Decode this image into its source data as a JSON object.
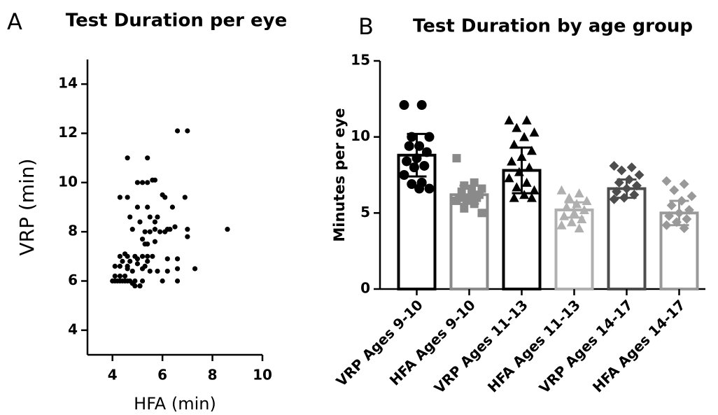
{
  "chart_data": [
    {
      "type": "scatter",
      "panel_label": "A",
      "title": "Test Duration per eye",
      "x_label": "HFA (min)",
      "y_label": "VRP (min)",
      "color": "#000000",
      "xlim": [
        3,
        10
      ],
      "xticks": [
        4,
        6,
        8,
        10
      ],
      "ylim": [
        3,
        15
      ],
      "yticks": [
        4,
        6,
        8,
        10,
        12,
        14
      ],
      "x": [
        4.0,
        4.1,
        4.2,
        4.3,
        4.4,
        4.5,
        4.6,
        4.7,
        4.8,
        4.9,
        5.1,
        5.2,
        4.9,
        5.1,
        4.1,
        4.3,
        4.1,
        4.3,
        4.6,
        4.8,
        4.3,
        4.6,
        4.9,
        5.2,
        5.4,
        5.6,
        4.4,
        4.7,
        5.0,
        5.3,
        5.5,
        4.6,
        4.5,
        5.2,
        5.4,
        5.8,
        6.0,
        6.2,
        6.6,
        6.2,
        6.6,
        7.3,
        6.6,
        4.6,
        5.4,
        6.6,
        7.0,
        5.0,
        5.2,
        5.4,
        5.6,
        5.7,
        4.3,
        4.6,
        6.0,
        6.1,
        6.9,
        6.4,
        5.0,
        5.4,
        4.7,
        5.5,
        5.8,
        5.1,
        5.7,
        4.8,
        6.2,
        7.0,
        8.6,
        5.3,
        5.5,
        5.7,
        5.9,
        6.1,
        6.3,
        6.5,
        7.0,
        5.3,
        5.4,
        5.2,
        5.7,
        5.0,
        4.5
      ],
      "y": [
        6.0,
        6.0,
        6.0,
        6.0,
        6.0,
        6.0,
        6.0,
        6.0,
        5.9,
        6.0,
        5.8,
        6.0,
        5.8,
        5.8,
        6.2,
        6.2,
        6.6,
        6.6,
        6.6,
        6.4,
        7.0,
        7.0,
        7.0,
        7.0,
        7.0,
        7.0,
        6.8,
        6.8,
        6.7,
        6.6,
        6.4,
        6.5,
        6.2,
        6.5,
        6.8,
        6.4,
        6.0,
        6.4,
        6.0,
        6.9,
        6.5,
        6.5,
        6.9,
        11.0,
        11.0,
        12.1,
        12.1,
        10.0,
        10.0,
        10.0,
        10.1,
        10.1,
        9.4,
        9.4,
        9.5,
        9.4,
        9.4,
        9.0,
        9.0,
        9.0,
        8.6,
        8.6,
        8.6,
        8.4,
        8.4,
        8.1,
        8.1,
        8.1,
        8.1,
        8.0,
        8.0,
        8.1,
        8.0,
        8.0,
        8.1,
        8.2,
        7.8,
        7.5,
        7.5,
        7.7,
        7.6,
        6.9,
        7.1
      ]
    },
    {
      "type": "bar",
      "panel_label": "B",
      "title": "Test Duration by age group",
      "y_label": "Minutes per eye",
      "ylim": [
        0,
        15
      ],
      "yticks": [
        0,
        5,
        10,
        15
      ],
      "categories": [
        "VRP Ages 9-10",
        "HFA Ages 9-10",
        "VRP Ages 11-13",
        "HFA Ages 11-13",
        "VRP Ages 14-17",
        "HFA Ages 14-17"
      ],
      "values": [
        8.8,
        6.2,
        7.8,
        5.2,
        6.6,
        5.0
      ],
      "errors": [
        1.4,
        0.6,
        1.5,
        0.5,
        0.6,
        0.8
      ],
      "colors": [
        "#000000",
        "#8a8a8a",
        "#000000",
        "#b0b0b0",
        "#4d4d4d",
        "#999999"
      ],
      "markers": [
        "circle",
        "square",
        "triangle",
        "triangle",
        "diamond",
        "diamond"
      ],
      "points": [
        [
          12.1,
          12.1,
          10.0,
          10.0,
          9.4,
          9.4,
          9.0,
          8.6,
          8.4,
          8.1,
          8.0,
          7.5,
          7.0,
          6.9,
          6.6,
          6.6
        ],
        [
          8.6,
          7.0,
          6.8,
          6.6,
          6.5,
          6.4,
          6.2,
          6.0,
          6.0,
          6.0,
          5.9,
          5.8,
          5.6,
          5.3,
          5.0
        ],
        [
          11.1,
          11.1,
          10.6,
          10.3,
          10.0,
          9.5,
          9.1,
          8.7,
          8.4,
          8.0,
          7.7,
          7.3,
          7.0,
          6.7,
          6.5,
          6.2,
          6.0,
          6.0
        ],
        [
          6.5,
          6.3,
          6.0,
          5.8,
          5.6,
          5.4,
          5.2,
          5.0,
          4.8,
          4.6,
          4.4,
          4.2,
          4.0
        ],
        [
          8.1,
          8.0,
          7.8,
          7.5,
          7.2,
          7.0,
          6.8,
          6.6,
          6.4,
          6.2,
          6.0,
          5.9
        ],
        [
          7.1,
          6.9,
          6.5,
          6.1,
          5.8,
          5.5,
          5.2,
          5.0,
          4.8,
          4.6,
          4.4,
          4.2,
          4.0
        ]
      ]
    }
  ]
}
